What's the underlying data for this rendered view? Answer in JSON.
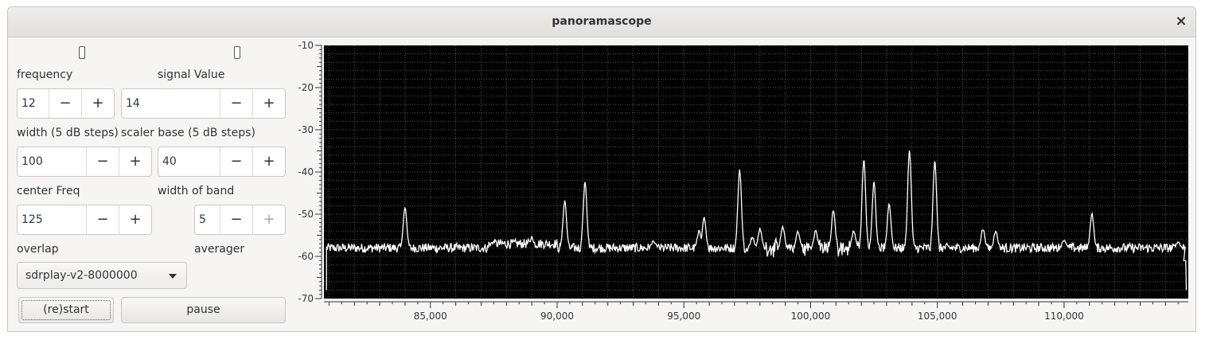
{
  "window": {
    "title": "panoramascope",
    "close_glyph": "×"
  },
  "controls": {
    "frequency": {
      "label": "frequency",
      "value": "12"
    },
    "signal_value": {
      "label": "signal Value",
      "value": "14"
    },
    "width": {
      "label": "width (5 dB steps)",
      "value": "100"
    },
    "scaler_base": {
      "label": "scaler base (5 dB steps)",
      "value": "40"
    },
    "center_freq": {
      "label": "center Freq",
      "value": "125"
    },
    "width_of_band": {
      "label": "width of band",
      "value": "5"
    },
    "overlap": {
      "label": "overlap"
    },
    "averager": {
      "label": "averager"
    },
    "device": {
      "selected": "sdrplay-v2-8000000"
    },
    "minus": "−",
    "plus": "+",
    "restart_label": "(re)start",
    "pause_label": "pause"
  },
  "icons": {
    "led": "indicator-led-icon",
    "dropdown": "chevron-down-icon"
  },
  "colors": {
    "plot_bg": "#000000",
    "trace": "#ffffff",
    "grid": "#9a9a9a"
  },
  "chart_data": {
    "type": "line",
    "xlim": [
      80800,
      114900
    ],
    "ylim": [
      -70,
      -10
    ],
    "x_ticks": [
      85000,
      90000,
      95000,
      100000,
      105000,
      110000
    ],
    "x_tick_labels": [
      "85,000",
      "90,000",
      "95,000",
      "100,000",
      "105,000",
      "110,000"
    ],
    "y_ticks": [
      -10,
      -20,
      -30,
      -40,
      -50,
      -60,
      -70
    ],
    "grid": true,
    "noise_floor": -58,
    "peaks": [
      {
        "x": 84000,
        "y": -48.5
      },
      {
        "x": 87500,
        "y": -56.5
      },
      {
        "x": 89000,
        "y": -55.5
      },
      {
        "x": 90300,
        "y": -47
      },
      {
        "x": 91100,
        "y": -42.5
      },
      {
        "x": 93800,
        "y": -56.5
      },
      {
        "x": 95600,
        "y": -54
      },
      {
        "x": 95800,
        "y": -51
      },
      {
        "x": 97200,
        "y": -39.5
      },
      {
        "x": 97700,
        "y": -55.5
      },
      {
        "x": 98000,
        "y": -53.5
      },
      {
        "x": 98900,
        "y": -53
      },
      {
        "x": 99500,
        "y": -54
      },
      {
        "x": 100200,
        "y": -54
      },
      {
        "x": 100900,
        "y": -49
      },
      {
        "x": 101700,
        "y": -54
      },
      {
        "x": 102100,
        "y": -37
      },
      {
        "x": 102500,
        "y": -42.5
      },
      {
        "x": 103100,
        "y": -47.5
      },
      {
        "x": 103900,
        "y": -35
      },
      {
        "x": 104900,
        "y": -37.5
      },
      {
        "x": 106800,
        "y": -53.5
      },
      {
        "x": 107300,
        "y": -54
      },
      {
        "x": 110000,
        "y": -56
      },
      {
        "x": 111100,
        "y": -50
      },
      {
        "x": 114500,
        "y": -56.5
      }
    ],
    "edge_drop": {
      "left_x": 80900,
      "right_x": 114800,
      "y": -68
    }
  }
}
